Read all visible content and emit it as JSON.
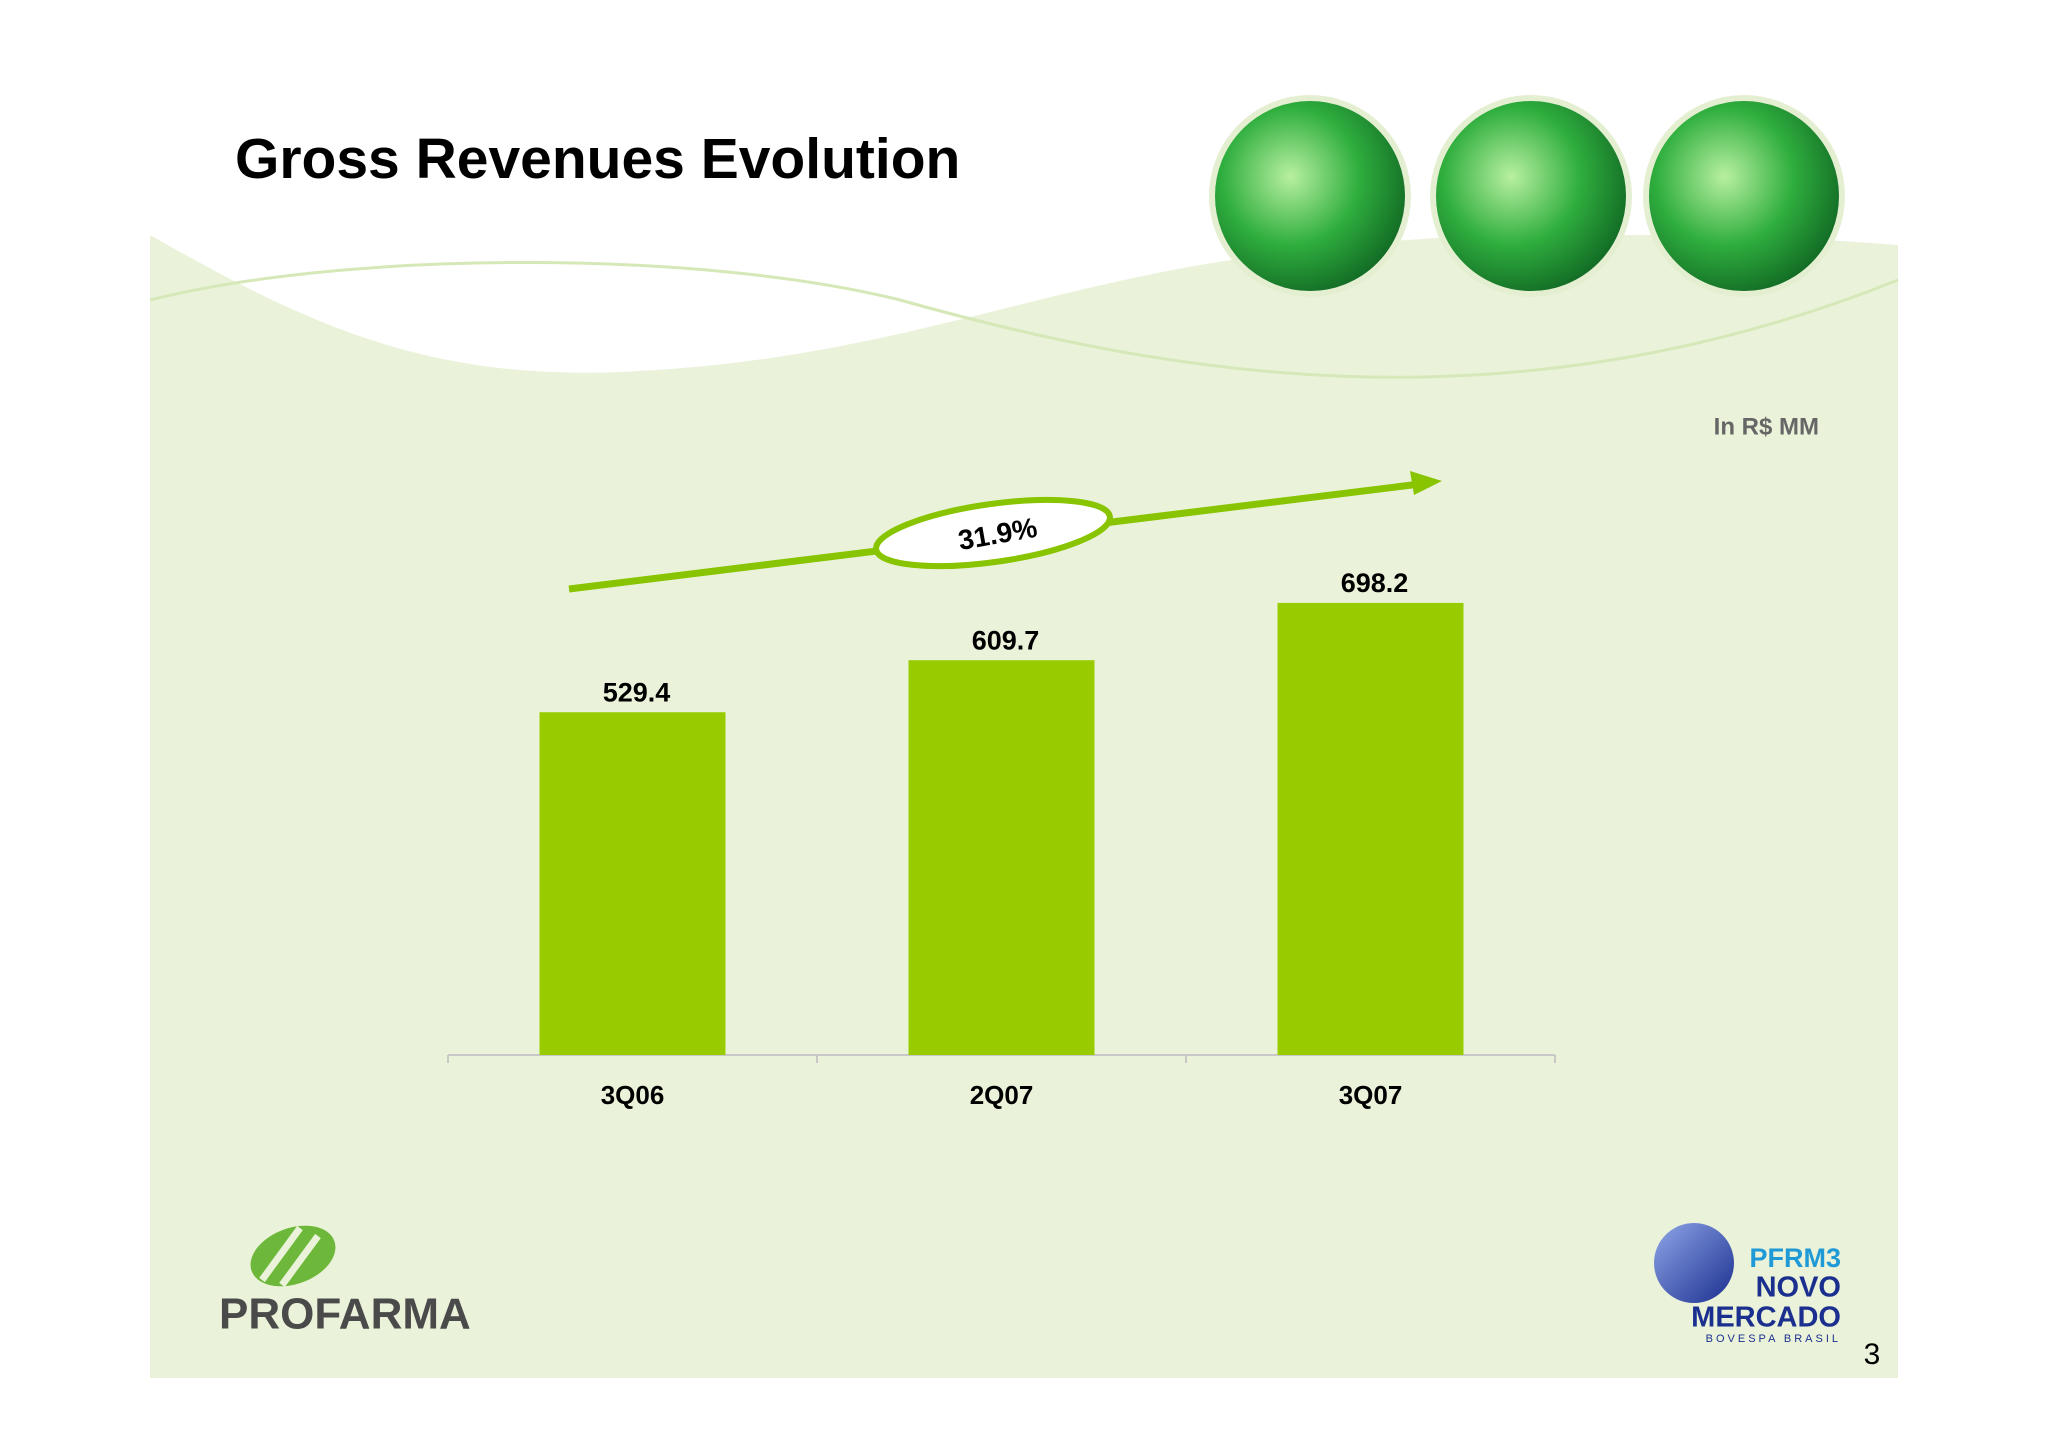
{
  "chart_data": {
    "type": "bar",
    "title": "Gross Revenues Evolution",
    "subtitle": "In R$ MM",
    "categories": [
      "3Q06",
      "2Q07",
      "3Q07"
    ],
    "values": [
      529.4,
      609.7,
      698.2
    ],
    "color": "#99cc00",
    "ylim": [
      0,
      800
    ],
    "annotation": "31.9%"
  },
  "footer": {
    "logo": "PROFARMA",
    "badge": [
      "PFRM3",
      "NOVO",
      "MERCADO"
    ],
    "badge_sub": "BOVESPA  BRASIL",
    "page": "3"
  }
}
